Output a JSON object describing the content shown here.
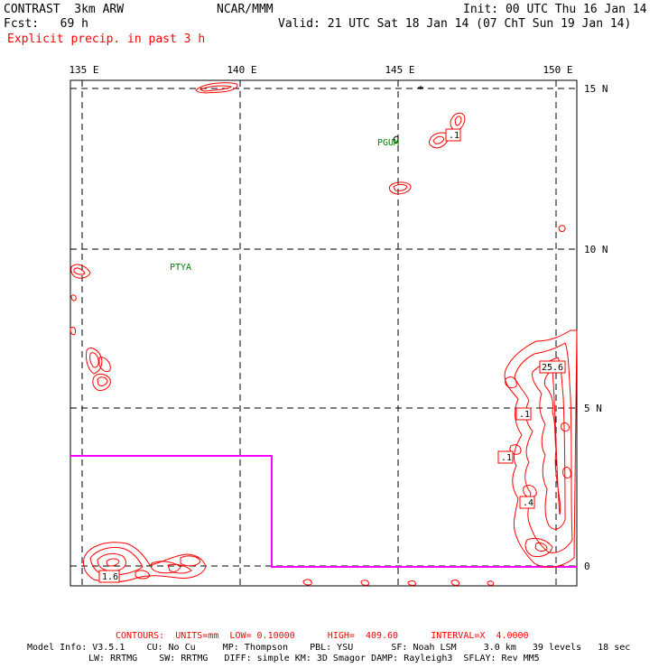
{
  "header": {
    "model": "CONTRAST  3km ARW",
    "org": "NCAR/MMM",
    "init": "Init: 00 UTC Thu 16 Jan 14",
    "fcst": "Fcst:   69 h",
    "valid": "Valid: 21 UTC Sat 18 Jan 14 (07 ChT Sun 19 Jan 14)",
    "field": "Explicit precip. in past 3 h"
  },
  "colors": {
    "contour": "#ff0000",
    "station": "#008000",
    "box": "#ff00ff",
    "frame": "#000000"
  },
  "map": {
    "lon_labels": [
      "135 E",
      "140 E",
      "145 E",
      "150 E"
    ],
    "lat_labels": [
      "15 N",
      "10 N",
      "5 N",
      "0"
    ],
    "stations": [
      "PGUM",
      "PTYA"
    ],
    "contour_labels": [
      ".1",
      "25.6",
      ".1",
      ".1",
      ".4",
      "1.6"
    ]
  },
  "footer": {
    "contours": "CONTOURS:  UNITS=mm  LOW= 0.10000      HIGH=  409.60      INTERVAL=X  4.0000",
    "model_info_1": "Model Info: V3.5.1    CU: No Cu     MP: Thompson    PBL: YSU       SF: Noah LSM     3.0 km   39 levels   18 sec",
    "model_info_2": "LW: RRTMG    SW: RRTMG   DIFF: simple KM: 3D Smagor DAMP: Rayleigh3  SFLAY: Rev MM5"
  }
}
